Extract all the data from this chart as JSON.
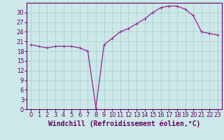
{
  "x": [
    0,
    1,
    2,
    3,
    4,
    5,
    6,
    7,
    8,
    9,
    10,
    11,
    12,
    13,
    14,
    15,
    16,
    17,
    18,
    19,
    20,
    21,
    22,
    23
  ],
  "y": [
    20,
    19.5,
    19,
    19.5,
    19.5,
    19.5,
    19,
    18,
    0.5,
    20,
    22,
    24,
    25,
    26.5,
    28,
    30,
    31.5,
    32,
    32,
    31,
    29,
    24,
    23.5,
    23
  ],
  "line_color": "#993399",
  "marker": "+",
  "marker_size": 3,
  "bg_color": "#cce8e8",
  "grid_color": "#aacccc",
  "xlabel": "Windchill (Refroidissement éolien,°C)",
  "xlabel_color": "#660066",
  "xlim": [
    -0.5,
    23.5
  ],
  "ylim": [
    0,
    33
  ],
  "yticks": [
    0,
    3,
    6,
    9,
    12,
    15,
    18,
    21,
    24,
    27,
    30
  ],
  "tick_color": "#660066",
  "tick_fontsize": 6,
  "xlabel_fontsize": 7,
  "axis_color": "#660066",
  "linewidth": 1.0
}
